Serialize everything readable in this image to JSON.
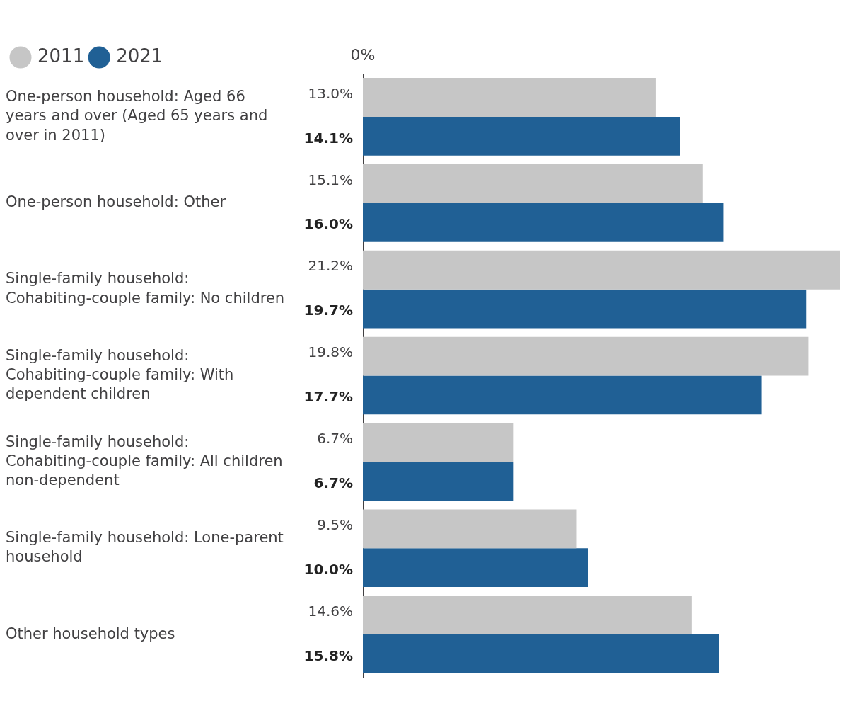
{
  "chart_data": {
    "type": "bar",
    "orientation": "horizontal",
    "categories": [
      "One-person household: Aged 66 years and over (Aged 65 years and over in 2011)",
      "One-person household: Other",
      "Single-family household: Cohabiting-couple family: No children",
      "Single-family household: Cohabiting-couple family: With dependent children",
      "Single-family household: Cohabiting-couple family: All children non-dependent",
      "Single-family household: Lone-parent household",
      "Other household types"
    ],
    "series": [
      {
        "name": "2011",
        "color": "#c6c6c6",
        "values": [
          13.0,
          15.1,
          21.2,
          19.8,
          6.7,
          9.5,
          14.6
        ],
        "value_labels": [
          "13.0%",
          "15.1%",
          "21.2%",
          "19.8%",
          "6.7%",
          "9.5%",
          "14.6%"
        ]
      },
      {
        "name": "2021",
        "color": "#206095",
        "values": [
          14.1,
          16.0,
          19.7,
          17.7,
          6.7,
          10.0,
          15.8
        ],
        "value_labels": [
          "14.1%",
          "16.0%",
          "19.7%",
          "17.7%",
          "6.7%",
          "10.0%",
          "15.8%"
        ]
      }
    ],
    "annotations": [
      "0%"
    ],
    "grid": false,
    "legend": "top left"
  }
}
